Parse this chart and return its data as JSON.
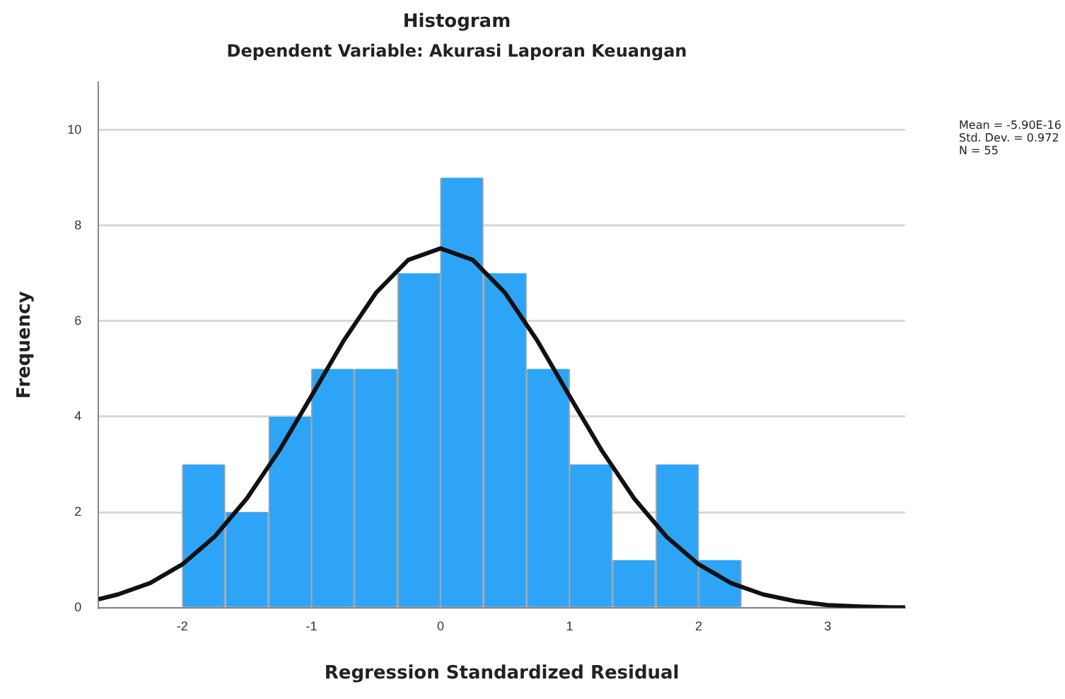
{
  "chart_data": {
    "type": "histogram",
    "title": "Histogram",
    "subtitle": "Dependent Variable: Akurasi Laporan Keuangan",
    "xlabel": "Regression Standardized Residual",
    "ylabel": "Frequency",
    "bins": [
      -2,
      -1.67,
      -1.33,
      -1,
      -0.67,
      -0.33,
      0,
      0.33,
      0.67,
      1,
      1.33,
      1.67,
      2,
      2.33
    ],
    "values": [
      3,
      2,
      4,
      5,
      5,
      7,
      9,
      7,
      5,
      3,
      1,
      3,
      1
    ],
    "color": "#2ea4f6",
    "series": [
      {
        "type": "line",
        "color": "#111111",
        "x": [
          -2.65,
          -2.5,
          -2.25,
          -2,
          -1.75,
          -1.5,
          -1.25,
          -1,
          -0.75,
          -0.5,
          -0.25,
          0,
          0.25,
          0.5,
          0.75,
          1,
          1.25,
          1.5,
          1.75,
          2,
          2.25,
          2.5,
          2.75,
          3,
          3.25,
          3.5,
          3.6
        ],
        "values": [
          0.18,
          0.28,
          0.52,
          0.91,
          1.49,
          2.29,
          3.29,
          4.43,
          5.59,
          6.59,
          7.28,
          7.52,
          7.28,
          6.59,
          5.59,
          4.43,
          3.29,
          2.29,
          1.49,
          0.91,
          0.52,
          0.28,
          0.14,
          0.06,
          0.03,
          0.01,
          0.01
        ]
      }
    ],
    "xlim": [
      -2.65,
      3.6
    ],
    "ylim": [
      0,
      11
    ],
    "xticks": [
      -2,
      -1,
      0,
      1,
      2,
      3
    ],
    "yticks": [
      0,
      2,
      4,
      6,
      8,
      10
    ],
    "grid": "y",
    "marker": "none",
    "annotations": [
      "Mean = -5.90E-16",
      "Std. Dev. = 0.972",
      "N = 55"
    ]
  }
}
